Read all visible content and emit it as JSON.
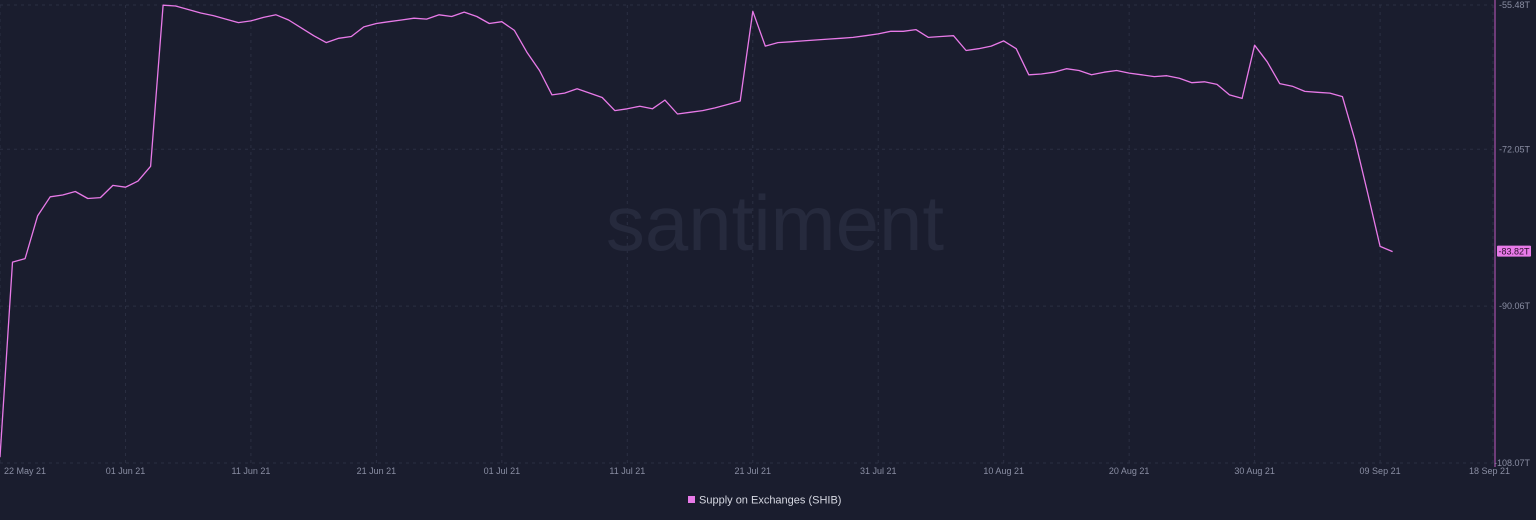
{
  "watermark": "santiment",
  "chart_data": {
    "type": "line",
    "title": "",
    "xlabel": "",
    "ylabel": "",
    "x_start": "2021-05-22",
    "x_end": "2021-09-18",
    "x_ticks": [
      "22 May 21",
      "01 Jun 21",
      "11 Jun 21",
      "21 Jun 21",
      "01 Jul 21",
      "11 Jul 21",
      "21 Jul 21",
      "31 Jul 21",
      "10 Aug 21",
      "20 Aug 21",
      "30 Aug 21",
      "09 Sep 21",
      "18 Sep 21"
    ],
    "y_ticks": [
      -55.48,
      -72.05,
      -90.06,
      -108.07
    ],
    "y_tick_labels": [
      "-55.48T",
      "-72.05T",
      "-90.06T",
      "-108.07T"
    ],
    "ylim": [
      -108.07,
      -55.48
    ],
    "unit": "T",
    "grid": true,
    "legend_position": "bottom-center",
    "series": [
      {
        "name": "Supply on Exchanges (SHIB)",
        "color": "#e87ae8",
        "last_value_label": "-83.82T",
        "points": [
          [
            "2021-05-22",
            -107.4
          ],
          [
            "2021-05-23",
            -85.0
          ],
          [
            "2021-05-24",
            -84.6
          ],
          [
            "2021-05-25",
            -79.7
          ],
          [
            "2021-05-26",
            -77.5
          ],
          [
            "2021-05-27",
            -77.3
          ],
          [
            "2021-05-28",
            -76.9
          ],
          [
            "2021-05-29",
            -77.7
          ],
          [
            "2021-05-30",
            -77.6
          ],
          [
            "2021-05-31",
            -76.2
          ],
          [
            "2021-06-01",
            -76.4
          ],
          [
            "2021-06-02",
            -75.7
          ],
          [
            "2021-06-03",
            -74.0
          ],
          [
            "2021-06-04",
            -55.5
          ],
          [
            "2021-06-05",
            -55.6
          ],
          [
            "2021-06-06",
            -56.0
          ],
          [
            "2021-06-07",
            -56.4
          ],
          [
            "2021-06-08",
            -56.7
          ],
          [
            "2021-06-09",
            -57.1
          ],
          [
            "2021-06-10",
            -57.5
          ],
          [
            "2021-06-11",
            -57.3
          ],
          [
            "2021-06-12",
            -56.9
          ],
          [
            "2021-06-13",
            -56.6
          ],
          [
            "2021-06-14",
            -57.2
          ],
          [
            "2021-06-15",
            -58.1
          ],
          [
            "2021-06-16",
            -59.0
          ],
          [
            "2021-06-17",
            -59.8
          ],
          [
            "2021-06-18",
            -59.3
          ],
          [
            "2021-06-19",
            -59.1
          ],
          [
            "2021-06-20",
            -58.0
          ],
          [
            "2021-06-21",
            -57.6
          ],
          [
            "2021-06-22",
            -57.4
          ],
          [
            "2021-06-23",
            -57.2
          ],
          [
            "2021-06-24",
            -57.0
          ],
          [
            "2021-06-25",
            -57.1
          ],
          [
            "2021-06-26",
            -56.6
          ],
          [
            "2021-06-27",
            -56.8
          ],
          [
            "2021-06-28",
            -56.3
          ],
          [
            "2021-06-29",
            -56.8
          ],
          [
            "2021-06-30",
            -57.6
          ],
          [
            "2021-07-01",
            -57.4
          ],
          [
            "2021-07-02",
            -58.4
          ],
          [
            "2021-07-03",
            -60.9
          ],
          [
            "2021-07-04",
            -63.0
          ],
          [
            "2021-07-05",
            -65.8
          ],
          [
            "2021-07-06",
            -65.6
          ],
          [
            "2021-07-07",
            -65.1
          ],
          [
            "2021-07-08",
            -65.6
          ],
          [
            "2021-07-09",
            -66.1
          ],
          [
            "2021-07-10",
            -67.6
          ],
          [
            "2021-07-11",
            -67.4
          ],
          [
            "2021-07-12",
            -67.1
          ],
          [
            "2021-07-13",
            -67.4
          ],
          [
            "2021-07-14",
            -66.4
          ],
          [
            "2021-07-15",
            -68.0
          ],
          [
            "2021-07-16",
            -67.8
          ],
          [
            "2021-07-17",
            -67.6
          ],
          [
            "2021-07-18",
            -67.3
          ],
          [
            "2021-07-19",
            -66.9
          ],
          [
            "2021-07-20",
            -66.5
          ],
          [
            "2021-07-21",
            -56.2
          ],
          [
            "2021-07-22",
            -60.2
          ],
          [
            "2021-07-23",
            -59.8
          ],
          [
            "2021-07-24",
            -59.7
          ],
          [
            "2021-07-25",
            -59.6
          ],
          [
            "2021-07-26",
            -59.5
          ],
          [
            "2021-07-27",
            -59.4
          ],
          [
            "2021-07-28",
            -59.3
          ],
          [
            "2021-07-29",
            -59.2
          ],
          [
            "2021-07-30",
            -59.0
          ],
          [
            "2021-07-31",
            -58.8
          ],
          [
            "2021-08-01",
            -58.5
          ],
          [
            "2021-08-02",
            -58.5
          ],
          [
            "2021-08-03",
            -58.3
          ],
          [
            "2021-08-04",
            -59.2
          ],
          [
            "2021-08-05",
            -59.1
          ],
          [
            "2021-08-06",
            -59.0
          ],
          [
            "2021-08-07",
            -60.7
          ],
          [
            "2021-08-08",
            -60.5
          ],
          [
            "2021-08-09",
            -60.2
          ],
          [
            "2021-08-10",
            -59.6
          ],
          [
            "2021-08-11",
            -60.5
          ],
          [
            "2021-08-12",
            -63.5
          ],
          [
            "2021-08-13",
            -63.4
          ],
          [
            "2021-08-14",
            -63.2
          ],
          [
            "2021-08-15",
            -62.8
          ],
          [
            "2021-08-16",
            -63.0
          ],
          [
            "2021-08-17",
            -63.5
          ],
          [
            "2021-08-18",
            -63.2
          ],
          [
            "2021-08-19",
            -63.0
          ],
          [
            "2021-08-20",
            -63.3
          ],
          [
            "2021-08-21",
            -63.5
          ],
          [
            "2021-08-22",
            -63.7
          ],
          [
            "2021-08-23",
            -63.6
          ],
          [
            "2021-08-24",
            -63.9
          ],
          [
            "2021-08-25",
            -64.4
          ],
          [
            "2021-08-26",
            -64.3
          ],
          [
            "2021-08-27",
            -64.6
          ],
          [
            "2021-08-28",
            -65.8
          ],
          [
            "2021-08-29",
            -66.2
          ],
          [
            "2021-08-30",
            -60.1
          ],
          [
            "2021-08-31",
            -62.0
          ],
          [
            "2021-09-01",
            -64.5
          ],
          [
            "2021-09-02",
            -64.8
          ],
          [
            "2021-09-03",
            -65.4
          ],
          [
            "2021-09-04",
            -65.5
          ],
          [
            "2021-09-05",
            -65.6
          ],
          [
            "2021-09-06",
            -66.0
          ],
          [
            "2021-09-07",
            -71.0
          ],
          [
            "2021-09-08",
            -77.0
          ],
          [
            "2021-09-09",
            -83.2
          ],
          [
            "2021-09-10",
            -83.8
          ]
        ]
      }
    ]
  }
}
